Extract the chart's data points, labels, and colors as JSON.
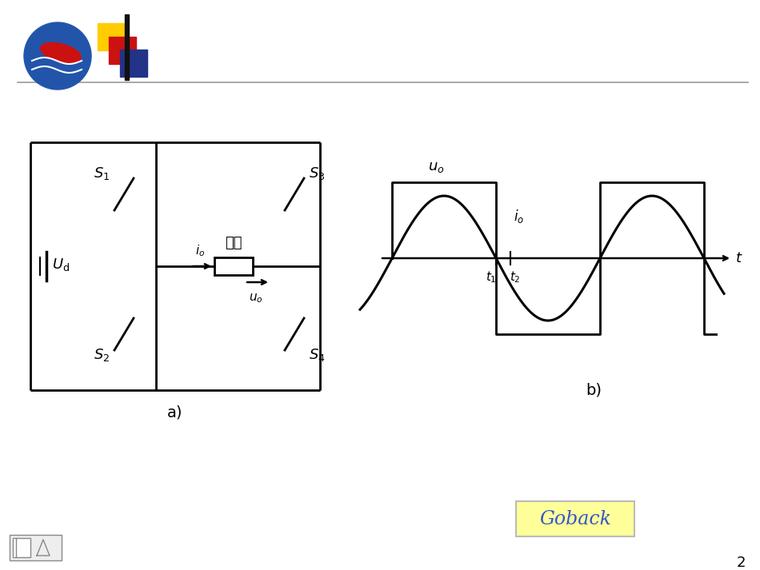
{
  "bg_color": "#ffffff",
  "separator_color": "#999999",
  "slide_number": "2",
  "circuit": {
    "label_a": "a)",
    "label_Ud": "$U_{\\rm d}$",
    "label_S1": "$S_1$",
    "label_S2": "$S_2$",
    "label_S3": "$S_3$",
    "label_S4": "$S_4$",
    "label_io": "$i_o$",
    "label_uo": "$u_o$",
    "label_load": "负载"
  },
  "waveform": {
    "label_b": "b)",
    "label_uo": "$u_o$",
    "label_io": "$i_o$",
    "label_t1": "$t_1$",
    "label_t2": "$t_2$",
    "label_t": "$t$"
  },
  "goback_bg": "#ffff99",
  "goback_border": "#bbbbbb",
  "goback_text": "#3355cc"
}
